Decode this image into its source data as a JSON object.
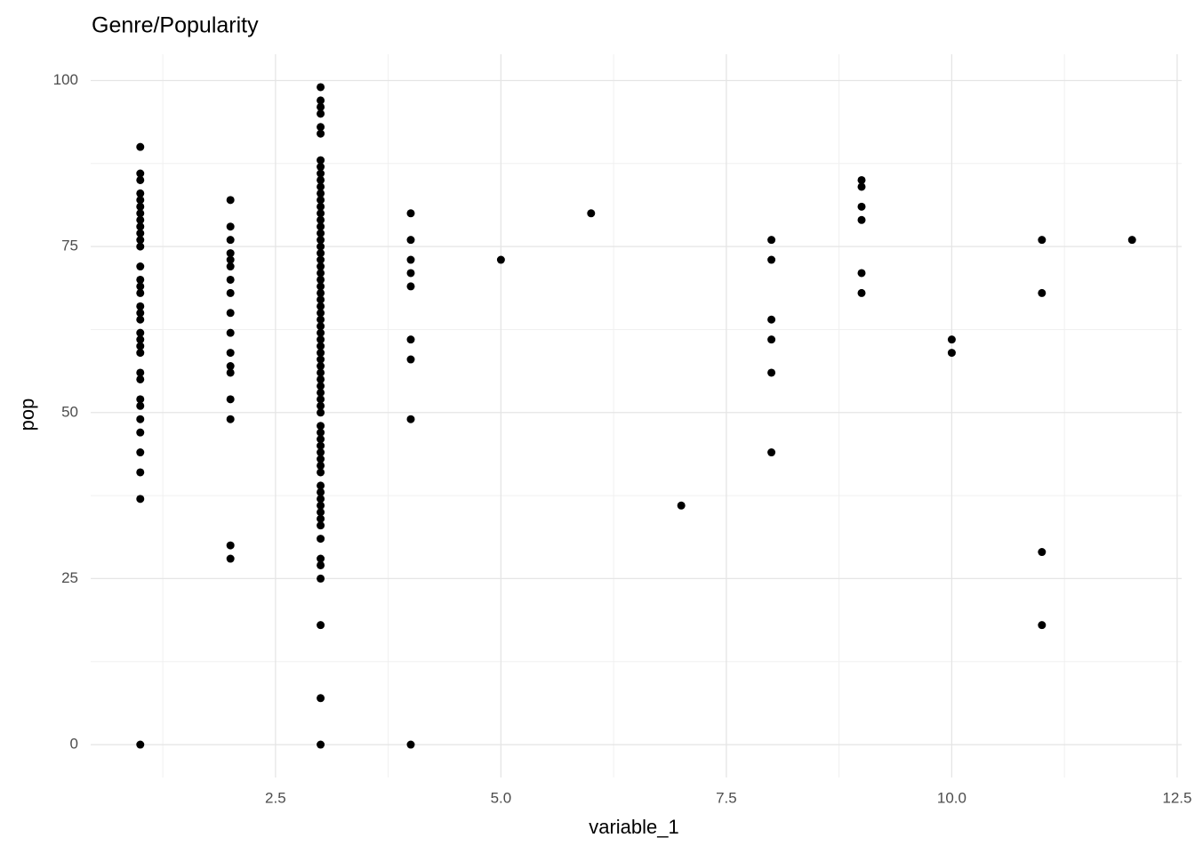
{
  "chart_data": {
    "type": "scatter",
    "title": "Genre/Popularity",
    "x_label": "variable_1",
    "y_label": "pop",
    "x": [
      1,
      1,
      1,
      1,
      1,
      1,
      1,
      1,
      1,
      1,
      1,
      1,
      1,
      1,
      1,
      1,
      1,
      1,
      1,
      1,
      1,
      1,
      1,
      1,
      1,
      1,
      1,
      1,
      1,
      1,
      1,
      1,
      1,
      2,
      2,
      2,
      2,
      2,
      2,
      2,
      2,
      2,
      2,
      2,
      2,
      2,
      2,
      2,
      2,
      2,
      3,
      3,
      3,
      3,
      3,
      3,
      3,
      3,
      3,
      3,
      3,
      3,
      3,
      3,
      3,
      3,
      3,
      3,
      3,
      3,
      3,
      3,
      3,
      3,
      3,
      3,
      3,
      3,
      3,
      3,
      3,
      3,
      3,
      3,
      3,
      3,
      3,
      3,
      3,
      3,
      3,
      3,
      3,
      3,
      3,
      3,
      3,
      3,
      3,
      3,
      3,
      3,
      3,
      3,
      3,
      3,
      3,
      3,
      3,
      3,
      3,
      3,
      3,
      3,
      3,
      3,
      3,
      4,
      4,
      4,
      4,
      4,
      4,
      4,
      4,
      4,
      5,
      6,
      7,
      8,
      8,
      8,
      8,
      8,
      8,
      9,
      9,
      9,
      9,
      9,
      9,
      10,
      10,
      11,
      11,
      11,
      11,
      12
    ],
    "values": [
      90,
      86,
      85,
      83,
      82,
      81,
      80,
      79,
      78,
      77,
      76,
      75,
      72,
      70,
      69,
      68,
      66,
      65,
      64,
      62,
      61,
      60,
      59,
      56,
      55,
      52,
      51,
      49,
      47,
      44,
      41,
      37,
      0,
      82,
      78,
      76,
      74,
      73,
      72,
      70,
      68,
      65,
      62,
      59,
      57,
      56,
      52,
      49,
      30,
      28,
      99,
      97,
      96,
      95,
      93,
      92,
      88,
      87,
      86,
      85,
      84,
      83,
      82,
      81,
      80,
      79,
      78,
      77,
      76,
      75,
      74,
      73,
      72,
      71,
      70,
      69,
      68,
      67,
      66,
      65,
      64,
      63,
      62,
      61,
      60,
      59,
      58,
      57,
      56,
      55,
      54,
      53,
      52,
      51,
      50,
      48,
      47,
      46,
      45,
      44,
      43,
      42,
      41,
      39,
      38,
      37,
      36,
      35,
      34,
      33,
      31,
      28,
      27,
      25,
      18,
      7,
      0,
      80,
      76,
      73,
      71,
      69,
      61,
      58,
      49,
      0,
      73,
      80,
      36,
      76,
      73,
      64,
      61,
      56,
      44,
      85,
      84,
      81,
      79,
      71,
      68,
      61,
      59,
      76,
      68,
      29,
      18,
      76
    ],
    "color": "#000000",
    "xlim": [
      0.45,
      12.55
    ],
    "xticks": [
      2.5,
      {
        "value": 5,
        "label": "5.0"
      },
      7.5,
      {
        "value": 10,
        "label": "10.0"
      },
      12.5
    ],
    "ylim": [
      -4.95,
      103.95
    ],
    "yticks": [
      0,
      25,
      50,
      75,
      100
    ],
    "grid": true
  }
}
